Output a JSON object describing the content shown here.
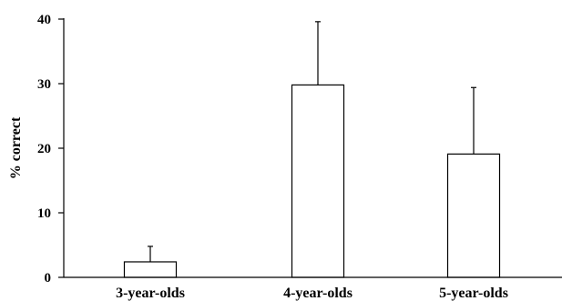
{
  "chart_data": {
    "type": "bar",
    "title": "",
    "xlabel": "",
    "ylabel": "% correct",
    "ylim": [
      0,
      40
    ],
    "yticks": [
      0,
      10,
      20,
      30,
      40
    ],
    "categories": [
      "3-year-olds",
      "4-year-olds",
      "5-year-olds"
    ],
    "values": [
      2.4,
      29.8,
      19.1
    ],
    "error_upper": [
      4.8,
      39.6,
      29.4
    ],
    "grid": false,
    "legend": "none"
  }
}
